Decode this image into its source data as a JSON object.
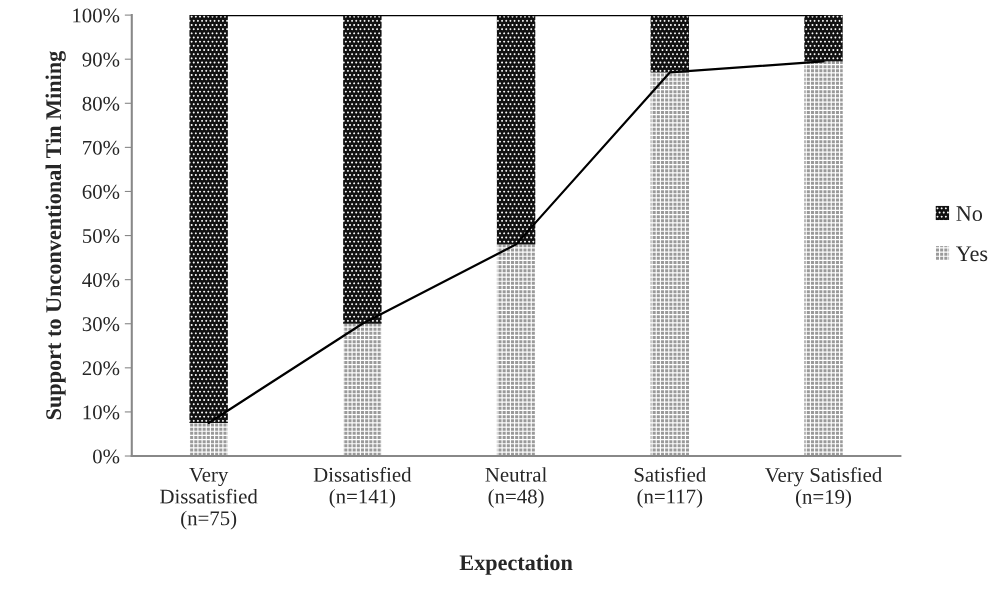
{
  "chart_data": {
    "type": "bar",
    "stacked": true,
    "xlabel": "Expectation",
    "ylabel": "Support to Unconventional Tin Mining",
    "categories": [
      "Very\nDissatisfied\n(n=75)",
      "Dissatisfied\n(n=141)",
      "Neutral\n(n=48)",
      "Satisfied\n(n=117)",
      "Very Satisfied\n(n=19)"
    ],
    "series": [
      {
        "name": "Yes",
        "color": "#9a9a9a",
        "values": [
          7.5,
          30,
          48,
          87,
          89.5
        ]
      },
      {
        "name": "No",
        "color": "#111111",
        "values": [
          92.5,
          70,
          52,
          13,
          10.5
        ]
      },
      {
        "type": "line",
        "color": "#000000",
        "values": [
          7.5,
          30,
          48,
          87,
          89.5
        ]
      },
      {
        "type": "line",
        "color": "#000000",
        "values": [
          100,
          100,
          100,
          100,
          100
        ]
      }
    ],
    "ylim": [
      0,
      100
    ],
    "yticks": [
      {
        "value": 0,
        "label": "0%"
      },
      {
        "value": 10,
        "label": "10%"
      },
      {
        "value": 20,
        "label": "20%"
      },
      {
        "value": 30,
        "label": "30%"
      },
      {
        "value": 40,
        "label": "40%"
      },
      {
        "value": 50,
        "label": "50%"
      },
      {
        "value": 60,
        "label": "60%"
      },
      {
        "value": 70,
        "label": "70%"
      },
      {
        "value": 80,
        "label": "80%"
      },
      {
        "value": 90,
        "label": "90%"
      },
      {
        "value": 100,
        "label": "100%"
      }
    ],
    "grid": false,
    "legend": "right"
  }
}
